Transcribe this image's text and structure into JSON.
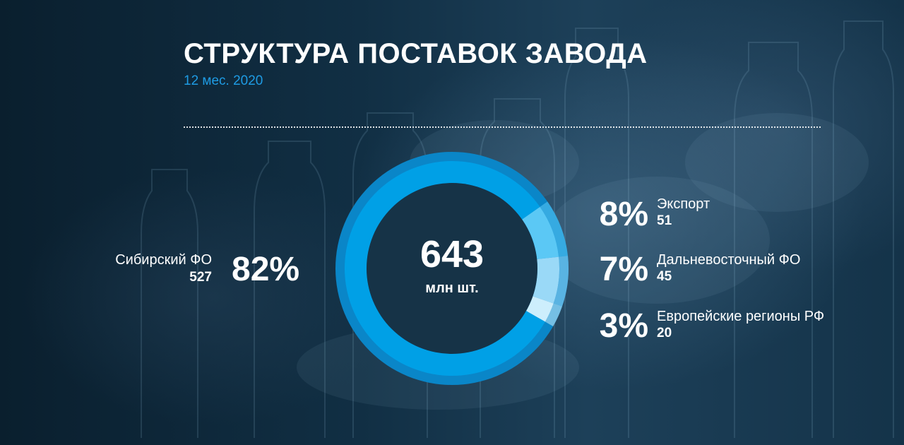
{
  "title": "СТРУКТУРА ПОСТАВОК ЗАВОДА",
  "subtitle": "12 мес. 2020",
  "colors": {
    "accent": "#1e9be3",
    "ring_outer": "#0a86c8",
    "slice_main": "#00a0e6",
    "slice_export": "#5bc8f5",
    "slice_far_east": "#9ad9f7",
    "slice_europe": "#cdeefc"
  },
  "chart_data": {
    "type": "pie",
    "title": "СТРУКТУРА ПОСТАВОК ЗАВОДА",
    "subtitle": "12 мес. 2020",
    "total": {
      "value": "643",
      "unit": "млн шт."
    },
    "slices": [
      {
        "name": "Экспорт",
        "value": 51,
        "percent": "8%",
        "percent_value": 8
      },
      {
        "name": "Дальневосточный ФО",
        "value": 45,
        "percent": "7%",
        "percent_value": 7
      },
      {
        "name": "Европейские регионы РФ",
        "value": 20,
        "percent": "3%",
        "percent_value": 3
      },
      {
        "name": "Сибирский ФО",
        "value": 527,
        "percent": "82%",
        "percent_value": 82
      }
    ]
  }
}
